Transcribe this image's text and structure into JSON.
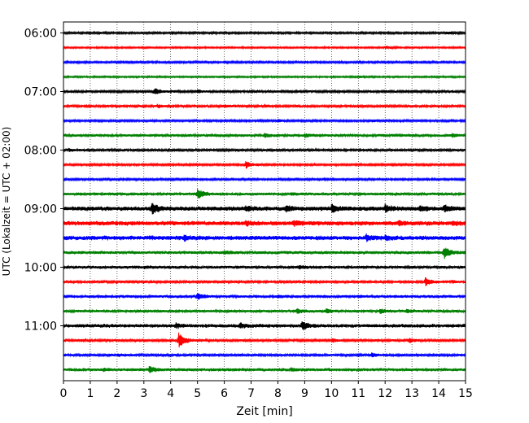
{
  "chart_data": {
    "type": "line",
    "subtype": "helicorder",
    "xlabel": "Zeit  [min]",
    "ylabel": "UTC (Lokalzeit = UTC + 02:00)",
    "xlim": [
      0,
      15
    ],
    "x_ticks": [
      "0",
      "1",
      "2",
      "3",
      "4",
      "5",
      "6",
      "7",
      "8",
      "9",
      "10",
      "11",
      "12",
      "13",
      "14",
      "15"
    ],
    "y_ticks": [
      "06:00",
      "07:00",
      "08:00",
      "09:00",
      "10:00",
      "11:00"
    ],
    "grid": "vertical-dotted",
    "trace_colors": [
      "#000000",
      "#ff0000",
      "#0000ff",
      "#008000"
    ],
    "traces": [
      {
        "start": "06:00",
        "noise": 0.25,
        "events": [
          {
            "t": 14.3,
            "a": 0.3
          }
        ]
      },
      {
        "start": "06:15",
        "noise": 0.2,
        "events": [
          {
            "t": 12.0,
            "a": 0.3
          }
        ]
      },
      {
        "start": "06:30",
        "noise": 0.25,
        "events": []
      },
      {
        "start": "06:45",
        "noise": 0.2,
        "events": [
          {
            "t": 11.0,
            "a": 0.25
          }
        ]
      },
      {
        "start": "07:00",
        "noise": 0.3,
        "events": [
          {
            "t": 3.4,
            "a": 0.9
          },
          {
            "t": 5.0,
            "a": 0.35
          }
        ]
      },
      {
        "start": "07:15",
        "noise": 0.3,
        "events": [
          {
            "t": 3.5,
            "a": 0.4
          },
          {
            "t": 6.0,
            "a": 0.3
          },
          {
            "t": 7.5,
            "a": 0.3
          }
        ]
      },
      {
        "start": "07:30",
        "noise": 0.25,
        "events": [
          {
            "t": 8.0,
            "a": 0.3
          },
          {
            "t": 11.5,
            "a": 0.25
          }
        ]
      },
      {
        "start": "07:45",
        "noise": 0.35,
        "events": [
          {
            "t": 7.5,
            "a": 0.5
          },
          {
            "t": 9.0,
            "a": 0.5
          },
          {
            "t": 14.5,
            "a": 0.35
          }
        ]
      },
      {
        "start": "08:00",
        "noise": 0.3,
        "events": [
          {
            "t": 0.2,
            "a": 0.3
          }
        ]
      },
      {
        "start": "08:15",
        "noise": 0.25,
        "events": [
          {
            "t": 6.8,
            "a": 1.0
          }
        ]
      },
      {
        "start": "08:30",
        "noise": 0.25,
        "events": []
      },
      {
        "start": "08:45",
        "noise": 0.35,
        "events": [
          {
            "t": 5.0,
            "a": 1.5
          },
          {
            "t": 8.5,
            "a": 0.35
          }
        ]
      },
      {
        "start": "09:00",
        "noise": 0.55,
        "events": [
          {
            "t": 3.3,
            "a": 1.5
          },
          {
            "t": 6.8,
            "a": 0.5
          },
          {
            "t": 8.3,
            "a": 0.7
          },
          {
            "t": 10.0,
            "a": 1.0
          },
          {
            "t": 12.0,
            "a": 0.9
          },
          {
            "t": 13.3,
            "a": 0.6
          },
          {
            "t": 14.2,
            "a": 0.8
          }
        ]
      },
      {
        "start": "09:15",
        "noise": 0.55,
        "events": [
          {
            "t": 6.8,
            "a": 0.6
          },
          {
            "t": 8.6,
            "a": 0.6
          },
          {
            "t": 12.5,
            "a": 0.5
          },
          {
            "t": 14.5,
            "a": 0.5
          }
        ]
      },
      {
        "start": "09:30",
        "noise": 0.55,
        "events": [
          {
            "t": 11.3,
            "a": 0.8
          },
          {
            "t": 4.5,
            "a": 0.5
          },
          {
            "t": 12.0,
            "a": 0.5
          }
        ]
      },
      {
        "start": "09:45",
        "noise": 0.4,
        "events": [
          {
            "t": 14.2,
            "a": 1.7
          },
          {
            "t": 6.0,
            "a": 0.4
          }
        ]
      },
      {
        "start": "10:00",
        "noise": 0.35,
        "events": [
          {
            "t": 8.8,
            "a": 0.5
          },
          {
            "t": 3.0,
            "a": 0.3
          }
        ]
      },
      {
        "start": "10:15",
        "noise": 0.3,
        "events": [
          {
            "t": 13.5,
            "a": 1.1
          },
          {
            "t": 14.5,
            "a": 0.3
          }
        ]
      },
      {
        "start": "10:30",
        "noise": 0.35,
        "events": [
          {
            "t": 5.0,
            "a": 0.9
          },
          {
            "t": 8.0,
            "a": 0.3
          },
          {
            "t": 11.0,
            "a": 0.35
          }
        ]
      },
      {
        "start": "10:45",
        "noise": 0.35,
        "events": [
          {
            "t": 8.7,
            "a": 0.6
          },
          {
            "t": 9.8,
            "a": 0.5
          },
          {
            "t": 11.8,
            "a": 0.6
          },
          {
            "t": 12.8,
            "a": 0.4
          }
        ]
      },
      {
        "start": "11:00",
        "noise": 0.45,
        "events": [
          {
            "t": 8.9,
            "a": 1.1
          },
          {
            "t": 6.6,
            "a": 0.6
          },
          {
            "t": 4.2,
            "a": 0.5
          }
        ]
      },
      {
        "start": "11:15",
        "noise": 0.3,
        "events": [
          {
            "t": 4.3,
            "a": 2.4
          },
          {
            "t": 10.0,
            "a": 0.5
          },
          {
            "t": 12.9,
            "a": 0.5
          }
        ]
      },
      {
        "start": "11:30",
        "noise": 0.3,
        "events": [
          {
            "t": 11.5,
            "a": 0.5
          },
          {
            "t": 2.0,
            "a": 0.3
          }
        ]
      },
      {
        "start": "11:45",
        "noise": 0.4,
        "events": [
          {
            "t": 3.2,
            "a": 0.8
          },
          {
            "t": 1.5,
            "a": 0.3
          },
          {
            "t": 8.5,
            "a": 0.35
          }
        ]
      }
    ]
  }
}
